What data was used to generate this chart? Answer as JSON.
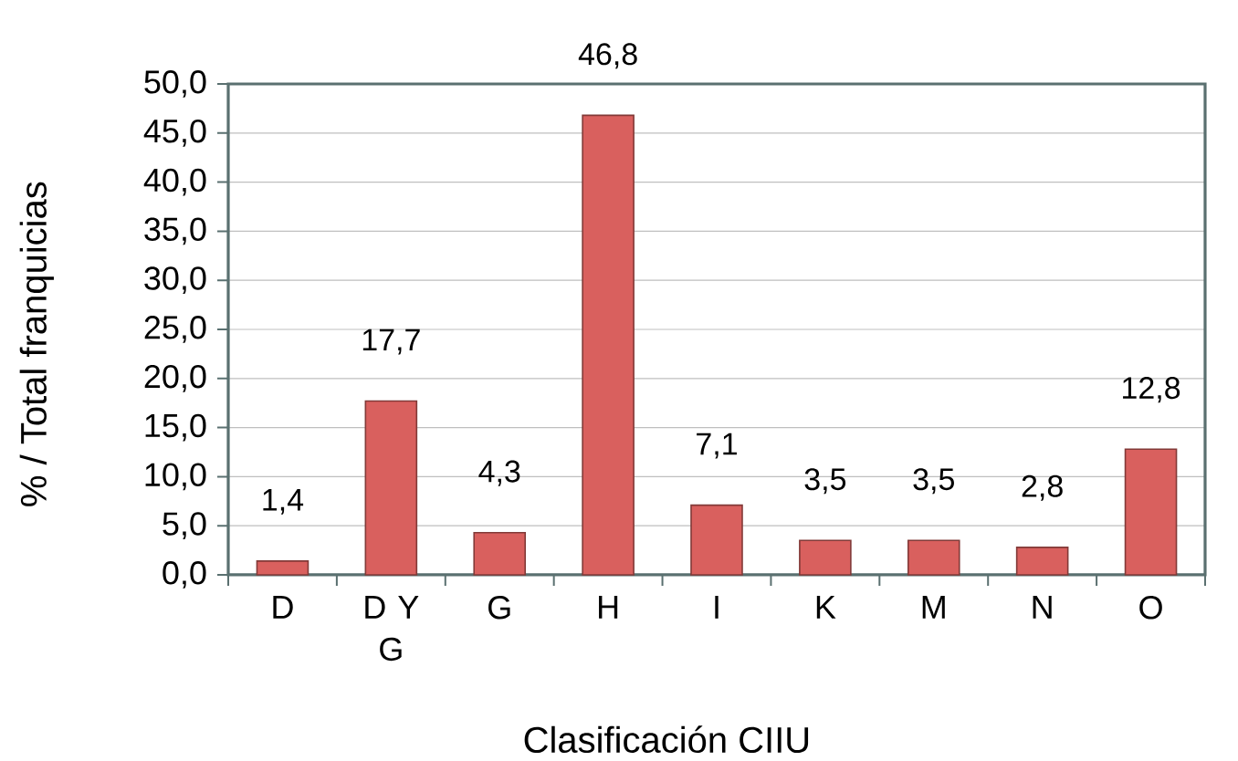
{
  "chart_data": {
    "type": "bar",
    "xlabel": "Clasificación CIIU",
    "ylabel": "% / Total franquicias",
    "categories": [
      "D",
      "D Y G",
      "G",
      "H",
      "I",
      "K",
      "M",
      "N",
      "O"
    ],
    "values": [
      1.4,
      17.7,
      4.3,
      46.8,
      7.1,
      3.5,
      3.5,
      2.8,
      12.8
    ],
    "value_labels": [
      "1,4",
      "17,7",
      "4,3",
      "46,8",
      "7,1",
      "3,5",
      "3,5",
      "2,8",
      "12,8"
    ],
    "color": "#d9605e",
    "ylim": [
      0,
      50
    ],
    "yticks": [
      {
        "value": 0,
        "label": "0,0"
      },
      {
        "value": 5,
        "label": "5,0"
      },
      {
        "value": 10,
        "label": "10,0"
      },
      {
        "value": 15,
        "label": "15,0"
      },
      {
        "value": 20,
        "label": "20,0"
      },
      {
        "value": 25,
        "label": "25,0"
      },
      {
        "value": 30,
        "label": "30,0"
      },
      {
        "value": 35,
        "label": "35,0"
      },
      {
        "value": 40,
        "label": "40,0"
      },
      {
        "value": 45,
        "label": "45,0"
      },
      {
        "value": 50,
        "label": "50,0"
      }
    ],
    "grid": "y"
  }
}
